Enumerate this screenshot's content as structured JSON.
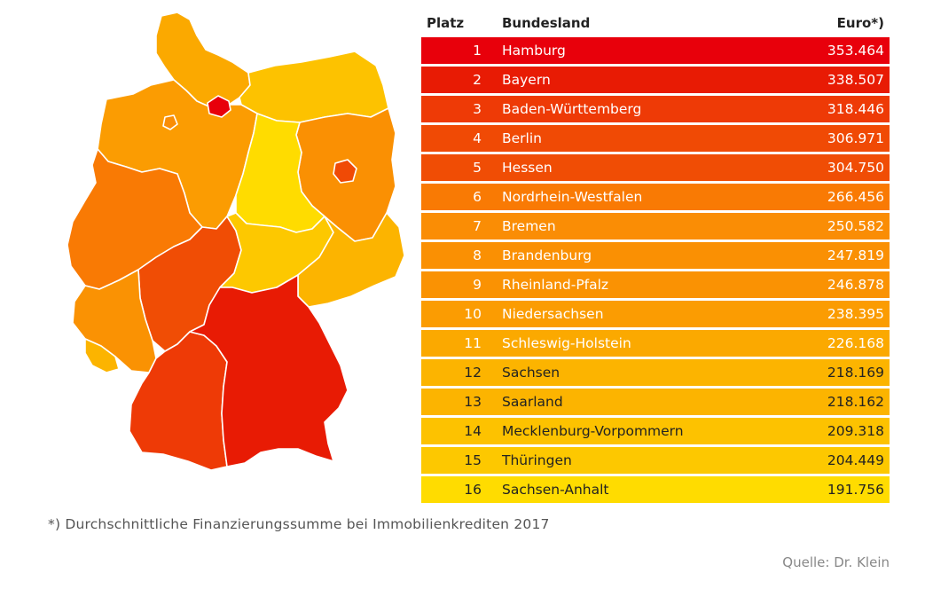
{
  "table": {
    "headers": {
      "rank": "Platz",
      "state": "Bundesland",
      "value": "Euro*)"
    },
    "rows": [
      {
        "rank": "1",
        "state": "Hamburg",
        "value": "353.464",
        "color": "#e8000b"
      },
      {
        "rank": "2",
        "state": "Bayern",
        "value": "338.507",
        "color": "#e81b04"
      },
      {
        "rank": "3",
        "state": "Baden-Württemberg",
        "value": "318.446",
        "color": "#ee3a06"
      },
      {
        "rank": "4",
        "state": "Berlin",
        "value": "306.971",
        "color": "#f04a05"
      },
      {
        "rank": "5",
        "state": "Hessen",
        "value": "304.750",
        "color": "#f04d05"
      },
      {
        "rank": "6",
        "state": "Nordrhein-Westfalen",
        "value": "266.456",
        "color": "#f97a04"
      },
      {
        "rank": "7",
        "state": "Bremen",
        "value": "250.582",
        "color": "#fa8d05"
      },
      {
        "rank": "8",
        "state": "Brandenburg",
        "value": "247.819",
        "color": "#fa9003"
      },
      {
        "rank": "9",
        "state": "Rheinland-Pfalz",
        "value": "246.878",
        "color": "#fa9203"
      },
      {
        "rank": "10",
        "state": "Niedersachsen",
        "value": "238.395",
        "color": "#fb9c02"
      },
      {
        "rank": "11",
        "state": "Schleswig-Holstein",
        "value": "226.168",
        "color": "#fba900"
      },
      {
        "rank": "12",
        "state": "Sachsen",
        "value": "218.169",
        "color": "#fcb400"
      },
      {
        "rank": "13",
        "state": "Saarland",
        "value": "218.162",
        "color": "#fcb400"
      },
      {
        "rank": "14",
        "state": "Mecklenburg-Vorpommern",
        "value": "209.318",
        "color": "#fdc200"
      },
      {
        "rank": "15",
        "state": "Thüringen",
        "value": "204.449",
        "color": "#fdc800"
      },
      {
        "rank": "16",
        "state": "Sachsen-Anhalt",
        "value": "191.756",
        "color": "#ffdc00"
      }
    ]
  },
  "map": {
    "states": [
      {
        "id": "schleswig-holstein",
        "color": "#fba900"
      },
      {
        "id": "hamburg",
        "color": "#e8000b"
      },
      {
        "id": "mecklenburg-vorpommern",
        "color": "#fdc200"
      },
      {
        "id": "niedersachsen",
        "color": "#fb9c02"
      },
      {
        "id": "bremen",
        "color": "#fa8d05"
      },
      {
        "id": "brandenburg",
        "color": "#fa9003"
      },
      {
        "id": "berlin",
        "color": "#f04a05"
      },
      {
        "id": "sachsen-anhalt",
        "color": "#ffdc00"
      },
      {
        "id": "nordrhein-westfalen",
        "color": "#f97a04"
      },
      {
        "id": "hessen",
        "color": "#f04d05"
      },
      {
        "id": "thueringen",
        "color": "#fdc800"
      },
      {
        "id": "sachsen",
        "color": "#fcb400"
      },
      {
        "id": "rheinland-pfalz",
        "color": "#fa9203"
      },
      {
        "id": "saarland",
        "color": "#fcb400"
      },
      {
        "id": "baden-wuerttemberg",
        "color": "#ee3a06"
      },
      {
        "id": "bayern",
        "color": "#e81b04"
      }
    ]
  },
  "footnote": "*) Durchschnittliche Finanzierungssumme bei Immobilienkrediten 2017",
  "source": "Quelle: Dr. Klein"
}
